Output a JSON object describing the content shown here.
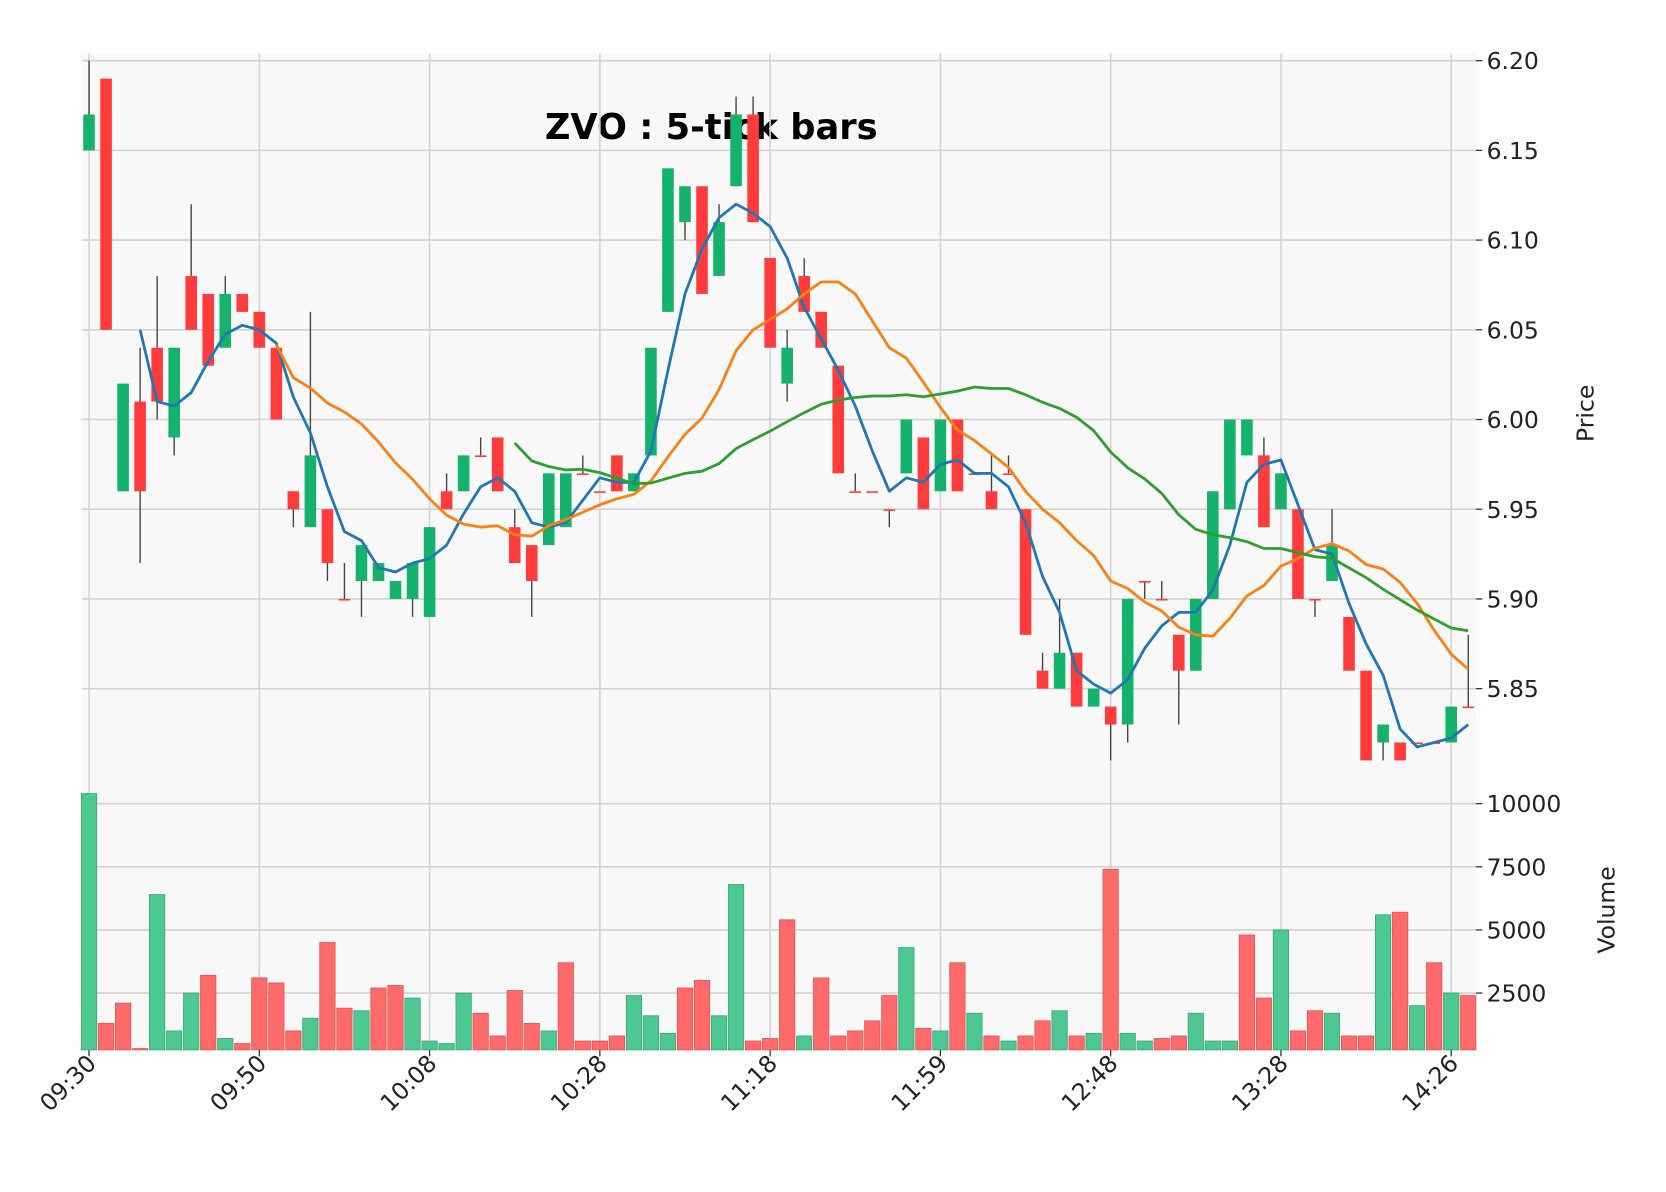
{
  "chart_data": {
    "type": "candlestick",
    "title": "ZVO : 5-tick bars",
    "ylabel": "Price",
    "volume_label": "Volume",
    "categories": [
      "09:30",
      null,
      null,
      null,
      null,
      null,
      null,
      null,
      null,
      null,
      "09:50",
      null,
      null,
      null,
      null,
      null,
      null,
      null,
      null,
      null,
      "10:08",
      null,
      null,
      null,
      null,
      null,
      null,
      null,
      null,
      null,
      "10:28",
      null,
      null,
      null,
      null,
      null,
      null,
      null,
      null,
      null,
      "11:18",
      null,
      null,
      null,
      null,
      null,
      null,
      null,
      null,
      null,
      "11:59",
      null,
      null,
      null,
      null,
      null,
      null,
      null,
      null,
      null,
      "12:48",
      null,
      null,
      null,
      null,
      null,
      null,
      null,
      null,
      null,
      "13:28",
      null,
      null,
      null,
      null,
      null,
      null,
      null,
      null,
      null,
      "14:26",
      null
    ],
    "open": [
      6.15,
      6.19,
      5.96,
      6.01,
      6.04,
      5.99,
      6.08,
      6.07,
      6.04,
      6.07,
      6.06,
      6.04,
      5.96,
      5.94,
      5.95,
      5.9,
      5.91,
      5.91,
      5.9,
      5.9,
      5.89,
      5.96,
      5.96,
      5.98,
      5.99,
      5.94,
      5.93,
      5.93,
      5.94,
      5.97,
      5.96,
      5.98,
      5.96,
      5.98,
      6.06,
      6.11,
      6.13,
      6.08,
      6.13,
      6.17,
      6.09,
      6.02,
      6.08,
      6.06,
      6.03,
      5.96,
      5.96,
      5.95,
      5.97,
      5.99,
      5.96,
      6.0,
      5.97,
      5.96,
      5.97,
      5.95,
      5.86,
      5.85,
      5.87,
      5.84,
      5.84,
      5.83,
      5.91,
      5.9,
      5.88,
      5.86,
      5.9,
      5.95,
      5.98,
      5.98,
      5.95,
      5.95,
      5.9,
      5.91,
      5.89,
      5.86,
      5.82,
      5.82,
      5.82,
      5.82,
      5.82,
      5.84
    ],
    "high": [
      6.2,
      6.19,
      6.02,
      6.04,
      6.08,
      6.04,
      6.12,
      6.07,
      6.08,
      6.07,
      6.06,
      6.04,
      5.96,
      6.06,
      5.95,
      5.92,
      5.93,
      5.92,
      5.91,
      5.92,
      5.94,
      5.97,
      5.98,
      5.99,
      5.99,
      5.95,
      5.93,
      5.97,
      5.97,
      5.98,
      5.96,
      5.98,
      5.97,
      6.04,
      6.14,
      6.13,
      6.13,
      6.12,
      6.18,
      6.18,
      6.09,
      6.05,
      6.09,
      6.06,
      6.03,
      5.97,
      5.96,
      5.95,
      6.0,
      5.99,
      6.0,
      6.0,
      5.97,
      5.98,
      5.98,
      5.95,
      5.87,
      5.9,
      5.87,
      5.85,
      5.84,
      5.9,
      5.91,
      5.91,
      5.88,
      5.9,
      5.96,
      6.0,
      6.0,
      5.99,
      5.97,
      5.95,
      5.9,
      5.95,
      5.89,
      5.86,
      5.83,
      5.82,
      5.82,
      5.82,
      5.84,
      5.88
    ],
    "low": [
      6.15,
      6.05,
      5.96,
      5.92,
      6.0,
      5.98,
      6.05,
      6.03,
      6.04,
      6.06,
      6.04,
      6.0,
      5.94,
      5.94,
      5.91,
      5.9,
      5.89,
      5.91,
      5.9,
      5.89,
      5.89,
      5.95,
      5.96,
      5.98,
      5.96,
      5.92,
      5.89,
      5.93,
      5.94,
      5.97,
      5.96,
      5.96,
      5.96,
      5.98,
      6.06,
      6.1,
      6.07,
      6.08,
      6.13,
      6.11,
      6.04,
      6.01,
      6.06,
      6.04,
      5.97,
      5.96,
      5.96,
      5.94,
      5.97,
      5.95,
      5.96,
      5.96,
      5.97,
      5.95,
      5.97,
      5.88,
      5.85,
      5.85,
      5.84,
      5.84,
      5.81,
      5.82,
      5.9,
      5.9,
      5.83,
      5.86,
      5.9,
      5.95,
      5.98,
      5.94,
      5.95,
      5.9,
      5.89,
      5.91,
      5.86,
      5.81,
      5.81,
      5.81,
      5.82,
      5.82,
      5.82,
      5.84
    ],
    "close": [
      6.17,
      6.05,
      6.02,
      5.96,
      6.01,
      6.04,
      6.05,
      6.03,
      6.07,
      6.06,
      6.04,
      6.0,
      5.95,
      5.98,
      5.92,
      5.9,
      5.93,
      5.92,
      5.91,
      5.92,
      5.94,
      5.95,
      5.98,
      5.98,
      5.96,
      5.92,
      5.91,
      5.97,
      5.97,
      5.97,
      5.96,
      5.96,
      5.97,
      6.04,
      6.14,
      6.13,
      6.07,
      6.11,
      6.17,
      6.11,
      6.04,
      6.04,
      6.06,
      6.04,
      5.97,
      5.96,
      5.96,
      5.95,
      6.0,
      5.95,
      6.0,
      5.96,
      5.97,
      5.95,
      5.97,
      5.88,
      5.85,
      5.87,
      5.84,
      5.85,
      5.83,
      5.9,
      5.91,
      5.9,
      5.86,
      5.9,
      5.96,
      6.0,
      6.0,
      5.94,
      5.97,
      5.9,
      5.9,
      5.93,
      5.86,
      5.81,
      5.83,
      5.81,
      5.82,
      5.82,
      5.84,
      5.84
    ],
    "volume": [
      10400,
      1300,
      2100,
      300,
      6400,
      1000,
      2500,
      3200,
      700,
      500,
      3100,
      2900,
      1000,
      1500,
      4500,
      1900,
      1800,
      2700,
      2800,
      2300,
      600,
      500,
      2500,
      1700,
      800,
      2600,
      1300,
      1000,
      3700,
      600,
      600,
      800,
      2400,
      1600,
      900,
      2700,
      3000,
      1600,
      6800,
      600,
      700,
      5400,
      800,
      3100,
      800,
      1000,
      1400,
      2400,
      4300,
      1100,
      1000,
      3700,
      1700,
      800,
      600,
      800,
      1400,
      1800,
      800,
      900,
      7400,
      900,
      600,
      700,
      800,
      1700,
      600,
      600,
      4800,
      2300,
      5000,
      1000,
      1800,
      1700,
      800,
      800,
      5600,
      5700,
      2000,
      3700,
      2500,
      2400
    ],
    "series": [
      {
        "color": "#1f77b4",
        "values": [
          null,
          null,
          null,
          6.05,
          6.01,
          6.0075,
          6.015,
          6.0325,
          6.0475,
          6.0525,
          6.05,
          6.0425,
          6.0125,
          5.9925,
          5.9625,
          5.9375,
          5.9325,
          5.9175,
          5.915,
          5.92,
          5.9225,
          5.93,
          5.9475,
          5.9625,
          5.9675,
          5.96,
          5.9425,
          5.94,
          5.9425,
          5.955,
          5.9675,
          5.965,
          5.965,
          5.9825,
          6.0275,
          6.07,
          6.095,
          6.1125,
          6.12,
          6.115,
          6.1075,
          6.09,
          6.0625,
          6.045,
          6.0275,
          6.0075,
          5.9825,
          5.96,
          5.9675,
          5.965,
          5.975,
          5.9775,
          5.97,
          5.97,
          5.9625,
          5.9425,
          5.9125,
          5.8925,
          5.86,
          5.8525,
          5.8475,
          5.855,
          5.8725,
          5.885,
          5.8925,
          5.8925,
          5.905,
          5.93,
          5.965,
          5.975,
          5.9775,
          5.9525,
          5.9275,
          5.925,
          5.8975,
          5.875,
          5.8575,
          5.8275,
          5.8175,
          5.82,
          5.8225,
          5.83
        ]
      },
      {
        "color": "#ff7f0e",
        "values": [
          null,
          null,
          null,
          null,
          null,
          null,
          null,
          null,
          null,
          null,
          null,
          6.0417,
          6.0233,
          6.0175,
          6.0092,
          6.0042,
          5.9975,
          5.9875,
          5.9758,
          5.9667,
          5.9558,
          5.9467,
          5.9417,
          5.94,
          5.9408,
          5.9358,
          5.935,
          5.9408,
          5.9442,
          5.9483,
          5.9525,
          5.9558,
          5.9583,
          5.9658,
          5.9792,
          5.9917,
          6.0008,
          6.0167,
          6.0383,
          6.05,
          6.0558,
          6.0617,
          6.07,
          6.0767,
          6.0767,
          6.07,
          6.055,
          6.04,
          6.0342,
          6.0208,
          6.0067,
          5.9942,
          5.9883,
          5.9808,
          5.9733,
          5.96,
          5.95,
          5.9425,
          5.9325,
          5.9242,
          5.91,
          5.9058,
          5.8983,
          5.8933,
          5.8842,
          5.88,
          5.8792,
          5.8892,
          5.9017,
          5.9075,
          5.9183,
          5.9225,
          5.9283,
          5.9308,
          5.9267,
          5.9192,
          5.9167,
          5.9092,
          5.8975,
          5.8825,
          5.8692,
          5.8608
        ]
      },
      {
        "color": "#2ca02c",
        "values": [
          null,
          null,
          null,
          null,
          null,
          null,
          null,
          null,
          null,
          null,
          null,
          null,
          null,
          null,
          null,
          null,
          null,
          null,
          null,
          null,
          null,
          null,
          null,
          null,
          null,
          5.9869,
          5.9769,
          5.9738,
          5.9719,
          5.9723,
          5.9704,
          5.9673,
          5.9642,
          5.9646,
          5.9673,
          5.97,
          5.9712,
          5.9754,
          5.9838,
          5.9888,
          5.9935,
          5.9988,
          6.0038,
          6.0085,
          6.0108,
          6.0123,
          6.0131,
          6.0131,
          6.0138,
          6.0127,
          6.0142,
          6.0158,
          6.0181,
          6.0173,
          6.0173,
          6.0138,
          6.0096,
          6.0062,
          6.0012,
          5.9938,
          5.9819,
          5.9731,
          5.9669,
          5.9588,
          5.9469,
          5.9388,
          5.9358,
          5.9342,
          5.9319,
          5.9281,
          5.9281,
          5.9258,
          5.9235,
          5.9227,
          5.9173,
          5.9119,
          5.9054,
          5.8996,
          5.8938,
          5.8888,
          5.8838,
          5.8823
        ]
      }
    ],
    "ylim": [
      5.807,
      6.204
    ],
    "yticks": [
      5.85,
      {
        "value": 5.9,
        "label": "5.90"
      },
      5.95,
      {
        "value": 6.0,
        "label": "6.00"
      },
      6.05,
      {
        "value": 6.1,
        "label": "6.10"
      },
      6.15,
      {
        "value": 6.2,
        "label": "6.20"
      }
    ],
    "volume_ylim": [
      250,
      11500
    ],
    "volume_yticks": [
      2500,
      5000,
      7500,
      10000
    ],
    "up_color": "#15b26b",
    "down_color": "#ff3b3b",
    "volume_up_color": "#4cc890",
    "volume_down_color": "#ff6b6b",
    "grid": true
  }
}
